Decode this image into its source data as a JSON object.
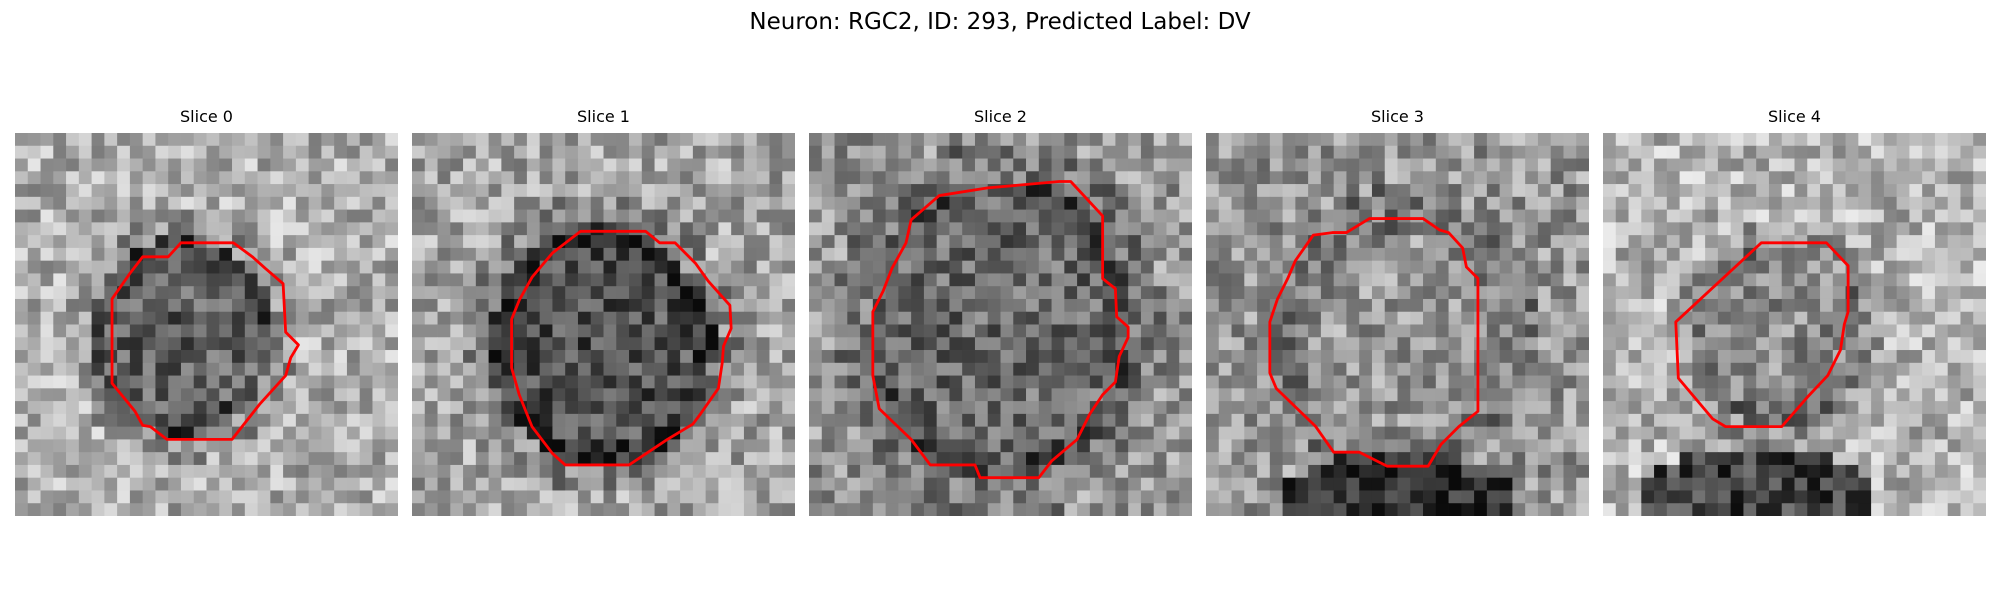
{
  "figure": {
    "title": "Neuron: RGC2, ID: 293, Predicted Label: DV"
  },
  "panels": [
    {
      "title": "Slice 0"
    },
    {
      "title": "Slice 1"
    },
    {
      "title": "Slice 2"
    },
    {
      "title": "Slice 3"
    },
    {
      "title": "Slice 4"
    }
  ],
  "colors": {
    "contour": "#ff0000",
    "background": "#ffffff"
  }
}
